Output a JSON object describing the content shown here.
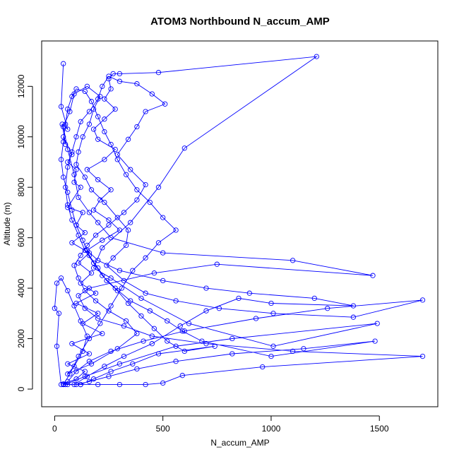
{
  "chart_data": {
    "type": "line",
    "title": "ATOM3 Northbound N_accum_AMP",
    "xlabel": "N_accum_AMP",
    "ylabel": "Altitude (m)",
    "xlim": [
      -60,
      1770
    ],
    "ylim": [
      -700,
      13800
    ],
    "x_ticks": [
      0,
      500,
      1000,
      1500
    ],
    "y_ticks": [
      0,
      2000,
      4000,
      6000,
      8000,
      10000,
      12000
    ],
    "grid": false,
    "legend": "none",
    "series": [
      {
        "color": "#0000ff",
        "marker": "open-circle",
        "points": [
          [
            40,
            12900
          ],
          [
            30,
            11200
          ],
          [
            60,
            10300
          ],
          [
            35,
            10500
          ],
          [
            50,
            9700
          ],
          [
            40,
            10000
          ],
          [
            80,
            9300
          ],
          [
            60,
            9000
          ],
          [
            100,
            8700
          ],
          [
            90,
            8200
          ],
          [
            120,
            8000
          ],
          [
            60,
            7200
          ],
          [
            130,
            7000
          ],
          [
            100,
            6500
          ],
          [
            140,
            6200
          ],
          [
            80,
            5800
          ],
          [
            160,
            5400
          ],
          [
            110,
            5000
          ],
          [
            170,
            4600
          ],
          [
            120,
            4200
          ],
          [
            190,
            3800
          ],
          [
            100,
            3400
          ],
          [
            200,
            3000
          ],
          [
            130,
            2600
          ],
          [
            220,
            2200
          ],
          [
            80,
            1800
          ],
          [
            160,
            1400
          ],
          [
            60,
            1000
          ],
          [
            140,
            700
          ],
          [
            100,
            400
          ],
          [
            40,
            200
          ],
          [
            90,
            180
          ],
          [
            150,
            500
          ],
          [
            230,
            900
          ],
          [
            320,
            1300
          ],
          [
            450,
            1800
          ],
          [
            580,
            2500
          ],
          [
            700,
            3100
          ],
          [
            850,
            3600
          ],
          [
            1000,
            3400
          ],
          [
            1380,
            3300
          ],
          [
            1200,
            3600
          ],
          [
            900,
            3800
          ],
          [
            700,
            4000
          ],
          [
            500,
            4300
          ],
          [
            300,
            4700
          ],
          [
            200,
            5100
          ],
          [
            150,
            5500
          ],
          [
            220,
            5900
          ],
          [
            300,
            6300
          ],
          [
            250,
            6700
          ],
          [
            180,
            7100
          ],
          [
            210,
            7500
          ],
          [
            260,
            7900
          ],
          [
            200,
            8300
          ],
          [
            150,
            8700
          ],
          [
            230,
            9100
          ],
          [
            280,
            9500
          ],
          [
            200,
            9900
          ],
          [
            180,
            10300
          ],
          [
            230,
            10700
          ],
          [
            280,
            11100
          ],
          [
            230,
            11500
          ],
          [
            260,
            11900
          ],
          [
            250,
            12300
          ],
          [
            270,
            12500
          ],
          [
            300,
            12500
          ],
          [
            480,
            12550
          ],
          [
            1210,
            13180
          ],
          [
            600,
            9550
          ],
          [
            480,
            8000
          ],
          [
            350,
            6600
          ],
          [
            220,
            5600
          ],
          [
            180,
            4800
          ],
          [
            260,
            4400
          ],
          [
            400,
            3600
          ],
          [
            620,
            2600
          ],
          [
            1010,
            1700
          ],
          [
            1490,
            2600
          ],
          [
            820,
            2000
          ],
          [
            560,
            1700
          ],
          [
            300,
            1000
          ],
          [
            140,
            500
          ],
          [
            50,
            180
          ],
          [
            120,
            180
          ],
          [
            200,
            180
          ],
          [
            300,
            180
          ],
          [
            420,
            180
          ],
          [
            500,
            240
          ],
          [
            590,
            540
          ],
          [
            960,
            880
          ],
          [
            1700,
            1300
          ],
          [
            1100,
            1500
          ],
          [
            700,
            1800
          ],
          [
            450,
            2100
          ],
          [
            320,
            2500
          ],
          [
            200,
            2800
          ],
          [
            140,
            3200
          ],
          [
            110,
            3700
          ],
          [
            160,
            4000
          ],
          [
            460,
            4600
          ],
          [
            750,
            4950
          ],
          [
            1470,
            4500
          ],
          [
            1100,
            5100
          ],
          [
            500,
            5400
          ],
          [
            260,
            6000
          ],
          [
            200,
            6600
          ],
          [
            160,
            7000
          ],
          [
            110,
            7600
          ],
          [
            90,
            8500
          ],
          [
            60,
            9500
          ],
          [
            40,
            10400
          ],
          [
            70,
            11000
          ],
          [
            90,
            11700
          ],
          [
            150,
            12000
          ],
          [
            210,
            11600
          ],
          [
            180,
            11100
          ],
          [
            160,
            10500
          ],
          [
            130,
            10000
          ],
          [
            110,
            9400
          ],
          [
            100,
            8900
          ],
          [
            140,
            8400
          ],
          [
            170,
            7900
          ],
          [
            230,
            7400
          ],
          [
            290,
            6800
          ],
          [
            340,
            6300
          ],
          [
            330,
            5700
          ],
          [
            270,
            5200
          ],
          [
            240,
            4900
          ],
          [
            320,
            4300
          ],
          [
            420,
            3800
          ],
          [
            560,
            3500
          ],
          [
            760,
            3200
          ],
          [
            1010,
            3000
          ],
          [
            1380,
            2850
          ],
          [
            1700,
            3530
          ],
          [
            1260,
            3200
          ],
          [
            930,
            2800
          ],
          [
            600,
            2300
          ],
          [
            410,
            1900
          ],
          [
            260,
            1500
          ],
          [
            160,
            1100
          ],
          [
            100,
            700
          ],
          [
            60,
            300
          ],
          [
            30,
            180
          ],
          [
            10,
            1700
          ],
          [
            20,
            3000
          ],
          [
            0,
            3200
          ],
          [
            10,
            4200
          ],
          [
            30,
            4400
          ],
          [
            60,
            3900
          ],
          [
            90,
            3300
          ],
          [
            120,
            2700
          ],
          [
            150,
            2100
          ],
          [
            130,
            1500
          ],
          [
            90,
            900
          ],
          [
            60,
            600
          ],
          [
            170,
            1000
          ],
          [
            290,
            1600
          ],
          [
            380,
            2200
          ],
          [
            330,
            2700
          ],
          [
            250,
            3100
          ],
          [
            190,
            3500
          ],
          [
            140,
            3900
          ],
          [
            110,
            4400
          ],
          [
            90,
            4900
          ],
          [
            120,
            5300
          ],
          [
            150,
            5700
          ],
          [
            190,
            6100
          ],
          [
            250,
            6500
          ],
          [
            320,
            7000
          ],
          [
            380,
            7500
          ],
          [
            420,
            8100
          ],
          [
            350,
            8700
          ],
          [
            290,
            9300
          ],
          [
            340,
            9900
          ],
          [
            380,
            10400
          ],
          [
            420,
            11000
          ],
          [
            510,
            11300
          ],
          [
            450,
            11700
          ],
          [
            380,
            12100
          ],
          [
            300,
            12200
          ],
          [
            250,
            12400
          ],
          [
            220,
            12000
          ],
          [
            200,
            11500
          ],
          [
            160,
            11000
          ],
          [
            120,
            10600
          ],
          [
            100,
            10000
          ],
          [
            80,
            9400
          ],
          [
            60,
            8800
          ],
          [
            50,
            8000
          ],
          [
            60,
            7300
          ],
          [
            80,
            6700
          ],
          [
            110,
            6100
          ],
          [
            140,
            5500
          ],
          [
            180,
            5000
          ],
          [
            220,
            4500
          ],
          [
            280,
            4000
          ],
          [
            350,
            3500
          ],
          [
            440,
            3100
          ],
          [
            520,
            2700
          ],
          [
            590,
            2300
          ],
          [
            680,
            1900
          ],
          [
            1000,
            1300
          ],
          [
            1480,
            1900
          ],
          [
            1150,
            1600
          ],
          [
            820,
            1400
          ],
          [
            560,
            1100
          ],
          [
            380,
            800
          ],
          [
            250,
            500
          ],
          [
            160,
            300
          ],
          [
            100,
            180
          ],
          [
            40,
            180
          ],
          [
            70,
            600
          ],
          [
            110,
            1300
          ],
          [
            160,
            2000
          ],
          [
            210,
            2600
          ],
          [
            260,
            3300
          ],
          [
            310,
            4000
          ],
          [
            360,
            4700
          ],
          [
            420,
            5200
          ],
          [
            480,
            5800
          ],
          [
            560,
            6300
          ],
          [
            500,
            6800
          ],
          [
            440,
            7400
          ],
          [
            380,
            7900
          ],
          [
            330,
            8500
          ],
          [
            290,
            9100
          ],
          [
            260,
            9700
          ],
          [
            230,
            10200
          ],
          [
            200,
            10800
          ],
          [
            170,
            11400
          ],
          [
            140,
            11800
          ],
          [
            100,
            11900
          ],
          [
            80,
            11600
          ],
          [
            60,
            11100
          ],
          [
            50,
            10500
          ],
          [
            40,
            9800
          ],
          [
            30,
            9100
          ],
          [
            40,
            8400
          ],
          [
            60,
            7800
          ],
          [
            80,
            7100
          ],
          [
            100,
            6500
          ],
          [
            130,
            5900
          ],
          [
            160,
            5300
          ],
          [
            200,
            4800
          ],
          [
            240,
            4300
          ],
          [
            290,
            3900
          ],
          [
            340,
            3400
          ],
          [
            400,
            2900
          ],
          [
            460,
            2400
          ],
          [
            520,
            1900
          ],
          [
            600,
            1500
          ],
          [
            740,
            1700
          ],
          [
            480,
            1400
          ],
          [
            360,
            1000
          ],
          [
            260,
            700
          ],
          [
            180,
            400
          ],
          [
            120,
            180
          ],
          [
            60,
            180
          ]
        ]
      }
    ]
  }
}
